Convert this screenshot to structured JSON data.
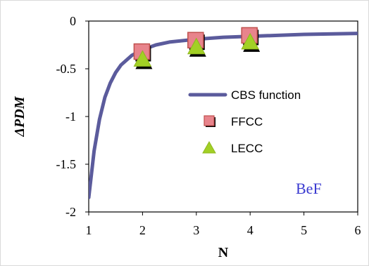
{
  "chart_data": {
    "type": "line",
    "x_label": "N",
    "y_label": "ΔPDM",
    "xlim": [
      1,
      6
    ],
    "ylim": [
      -2,
      0
    ],
    "x_ticks": [
      "1",
      "2",
      "3",
      "4",
      "5",
      "6"
    ],
    "y_ticks": [
      "0",
      "-0.5",
      "-1",
      "-1.5",
      "-2"
    ],
    "grid": false,
    "legend_position": "right",
    "annotation": "BeF",
    "series": [
      {
        "name": "CBS function",
        "kind": "line",
        "color": "#5b5b9c",
        "x": [
          1.0,
          1.1,
          1.2,
          1.3,
          1.4,
          1.5,
          1.6,
          1.8,
          2.0,
          2.25,
          2.5,
          3.0,
          3.5,
          4.0,
          5.0,
          6.0
        ],
        "y": [
          -1.85,
          -1.36,
          -1.03,
          -0.8,
          -0.65,
          -0.54,
          -0.46,
          -0.36,
          -0.3,
          -0.25,
          -0.22,
          -0.19,
          -0.17,
          -0.16,
          -0.14,
          -0.13
        ]
      },
      {
        "name": "FFCC",
        "kind": "marker",
        "marker": "square",
        "color": "#e8848c",
        "x": [
          2,
          3,
          4
        ],
        "y": [
          -0.32,
          -0.2,
          -0.15
        ]
      },
      {
        "name": "LECC",
        "kind": "marker",
        "marker": "triangle",
        "color": "#a2d025",
        "x": [
          2,
          3,
          4
        ],
        "y": [
          -0.4,
          -0.27,
          -0.22
        ]
      }
    ]
  }
}
